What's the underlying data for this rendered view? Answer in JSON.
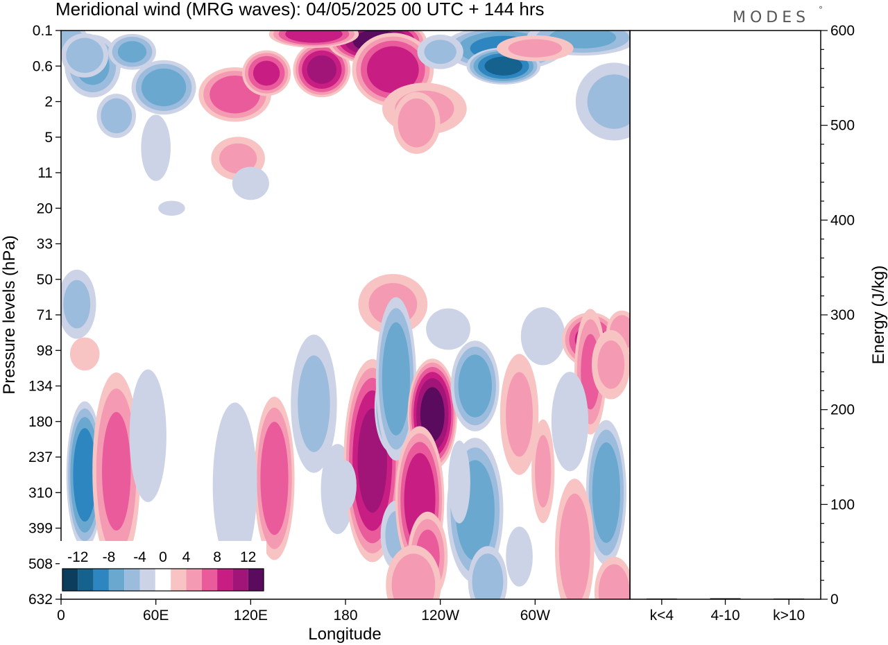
{
  "chart_data": [
    {
      "type": "heatmap",
      "title": "Meridional wind (MRG waves):  04/05/2025  00 UTC  + 144 hrs",
      "xlabel": "Longitude",
      "ylabel": "Pressure levels (hPa)",
      "x_ticks": [
        "0",
        "60E",
        "120E",
        "180",
        "120W",
        "60W"
      ],
      "x_tick_degrees": [
        0,
        60,
        120,
        180,
        240,
        300
      ],
      "xlim_degrees": [
        0,
        360
      ],
      "y_ticks": [
        "0.1",
        "0.6",
        "2",
        "5",
        "11",
        "20",
        "33",
        "50",
        "71",
        "98",
        "134",
        "180",
        "237",
        "310",
        "399",
        "508",
        "632"
      ],
      "y_reversed": true,
      "colorbar": {
        "labels": [
          "-12",
          "-8",
          "-4",
          "0",
          "4",
          "8",
          "12"
        ],
        "label_values": [
          -12,
          -8,
          -4,
          0,
          4,
          8,
          12
        ],
        "levels": [
          -14,
          -12,
          -10,
          -8,
          -6,
          -4,
          -2,
          2,
          4,
          6,
          8,
          10,
          12,
          14
        ],
        "colors": [
          "#0d3d5c",
          "#16628f",
          "#2e86c1",
          "#6aa8d0",
          "#9cbcdd",
          "#cdd3e6",
          "#ffffff",
          "#f8c3c3",
          "#f49ab3",
          "#ea5b9b",
          "#c81d82",
          "#a01577",
          "#5a0b5e"
        ]
      },
      "grid": false,
      "legend": "bottom-left colorbar"
    },
    {
      "type": "bar",
      "ylabel": "Energy (J/kg)",
      "categories": [
        "k<4",
        "4-10",
        "k>10"
      ],
      "values": [
        0,
        1,
        0
      ],
      "ylim": [
        0,
        600
      ],
      "y_ticks": [
        0,
        100,
        200,
        300,
        400,
        500,
        600
      ],
      "y_axis": "right",
      "grid": false
    }
  ],
  "brand": "MODES",
  "brand_mark": "°"
}
